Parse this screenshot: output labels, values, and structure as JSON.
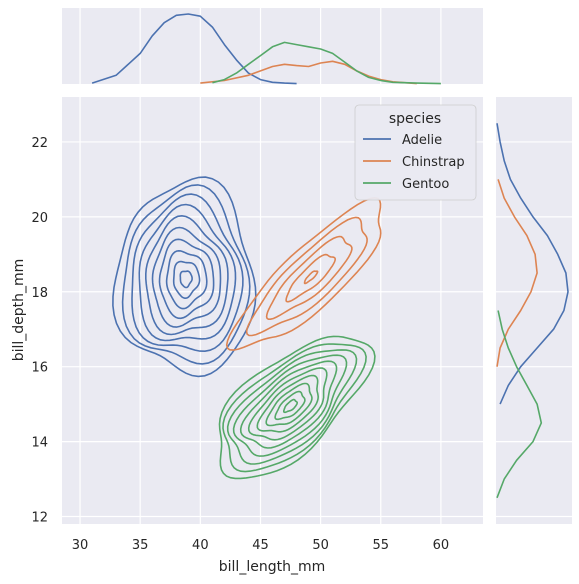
{
  "chart_data": {
    "type": "contour",
    "title": "",
    "xlabel": "bill_length_mm",
    "ylabel": "bill_depth_mm",
    "xlim": [
      28.5,
      63.5
    ],
    "ylim": [
      11.8,
      23.2
    ],
    "x_ticks": [
      30,
      35,
      40,
      45,
      50,
      55,
      60
    ],
    "y_ticks": [
      12,
      14,
      16,
      18,
      20,
      22
    ],
    "grid": true,
    "legend": {
      "title": "species",
      "placement": "top-right"
    },
    "series": [
      {
        "name": "Adelie",
        "color": "#4c72b0",
        "center": [
          38.8,
          18.35
        ],
        "spread": [
          2.7,
          1.2
        ],
        "rotation_deg": 0,
        "levels": 10,
        "marginal_x": {
          "x": [
            31,
            33,
            35,
            36,
            37,
            38,
            39,
            40,
            41,
            42,
            43,
            44,
            45,
            46,
            47,
            48
          ],
          "density": [
            0.002,
            0.02,
            0.07,
            0.11,
            0.14,
            0.157,
            0.16,
            0.155,
            0.13,
            0.09,
            0.055,
            0.025,
            0.01,
            0.004,
            0.002,
            0.001
          ]
        },
        "marginal_y": {
          "y": [
            15,
            15.5,
            16,
            16.5,
            17,
            17.5,
            18,
            18.5,
            19,
            19.5,
            20,
            20.5,
            21,
            21.5,
            22,
            22.5
          ],
          "density": [
            0.02,
            0.06,
            0.12,
            0.2,
            0.28,
            0.33,
            0.35,
            0.34,
            0.3,
            0.25,
            0.18,
            0.12,
            0.07,
            0.04,
            0.02,
            0.005
          ]
        }
      },
      {
        "name": "Chinstrap",
        "color": "#dd8452",
        "center": [
          49.2,
          18.4
        ],
        "spread": [
          2.8,
          1.05
        ],
        "rotation_deg": 35,
        "levels": 5,
        "marginal_x": {
          "x": [
            40,
            42,
            44,
            45,
            46,
            47,
            48,
            49,
            50,
            51,
            52,
            53,
            54,
            55,
            56,
            58
          ],
          "density": [
            0.002,
            0.008,
            0.02,
            0.03,
            0.04,
            0.045,
            0.042,
            0.04,
            0.048,
            0.052,
            0.045,
            0.03,
            0.018,
            0.01,
            0.005,
            0.001
          ]
        },
        "marginal_y": {
          "y": [
            16,
            16.5,
            17,
            17.5,
            18,
            18.5,
            19,
            19.5,
            20,
            20.5,
            21
          ],
          "density": [
            0.005,
            0.02,
            0.06,
            0.12,
            0.17,
            0.2,
            0.19,
            0.15,
            0.09,
            0.04,
            0.01
          ]
        }
      },
      {
        "name": "Gentoo",
        "color": "#55a868",
        "center": [
          47.5,
          14.95
        ],
        "spread": [
          3.0,
          0.95
        ],
        "rotation_deg": 25,
        "levels": 10,
        "marginal_x": {
          "x": [
            41,
            42,
            43,
            44,
            45,
            46,
            47,
            48,
            49,
            50,
            51,
            52,
            53,
            54,
            55,
            56,
            58,
            60
          ],
          "density": [
            0.003,
            0.01,
            0.025,
            0.045,
            0.065,
            0.085,
            0.095,
            0.09,
            0.085,
            0.08,
            0.07,
            0.05,
            0.03,
            0.015,
            0.008,
            0.004,
            0.002,
            0.001
          ]
        },
        "marginal_y": {
          "y": [
            12.5,
            13,
            13.5,
            14,
            14.5,
            15,
            15.5,
            16,
            16.5,
            17,
            17.5
          ],
          "density": [
            0.005,
            0.04,
            0.1,
            0.18,
            0.22,
            0.2,
            0.15,
            0.1,
            0.06,
            0.03,
            0.01
          ]
        }
      }
    ]
  }
}
